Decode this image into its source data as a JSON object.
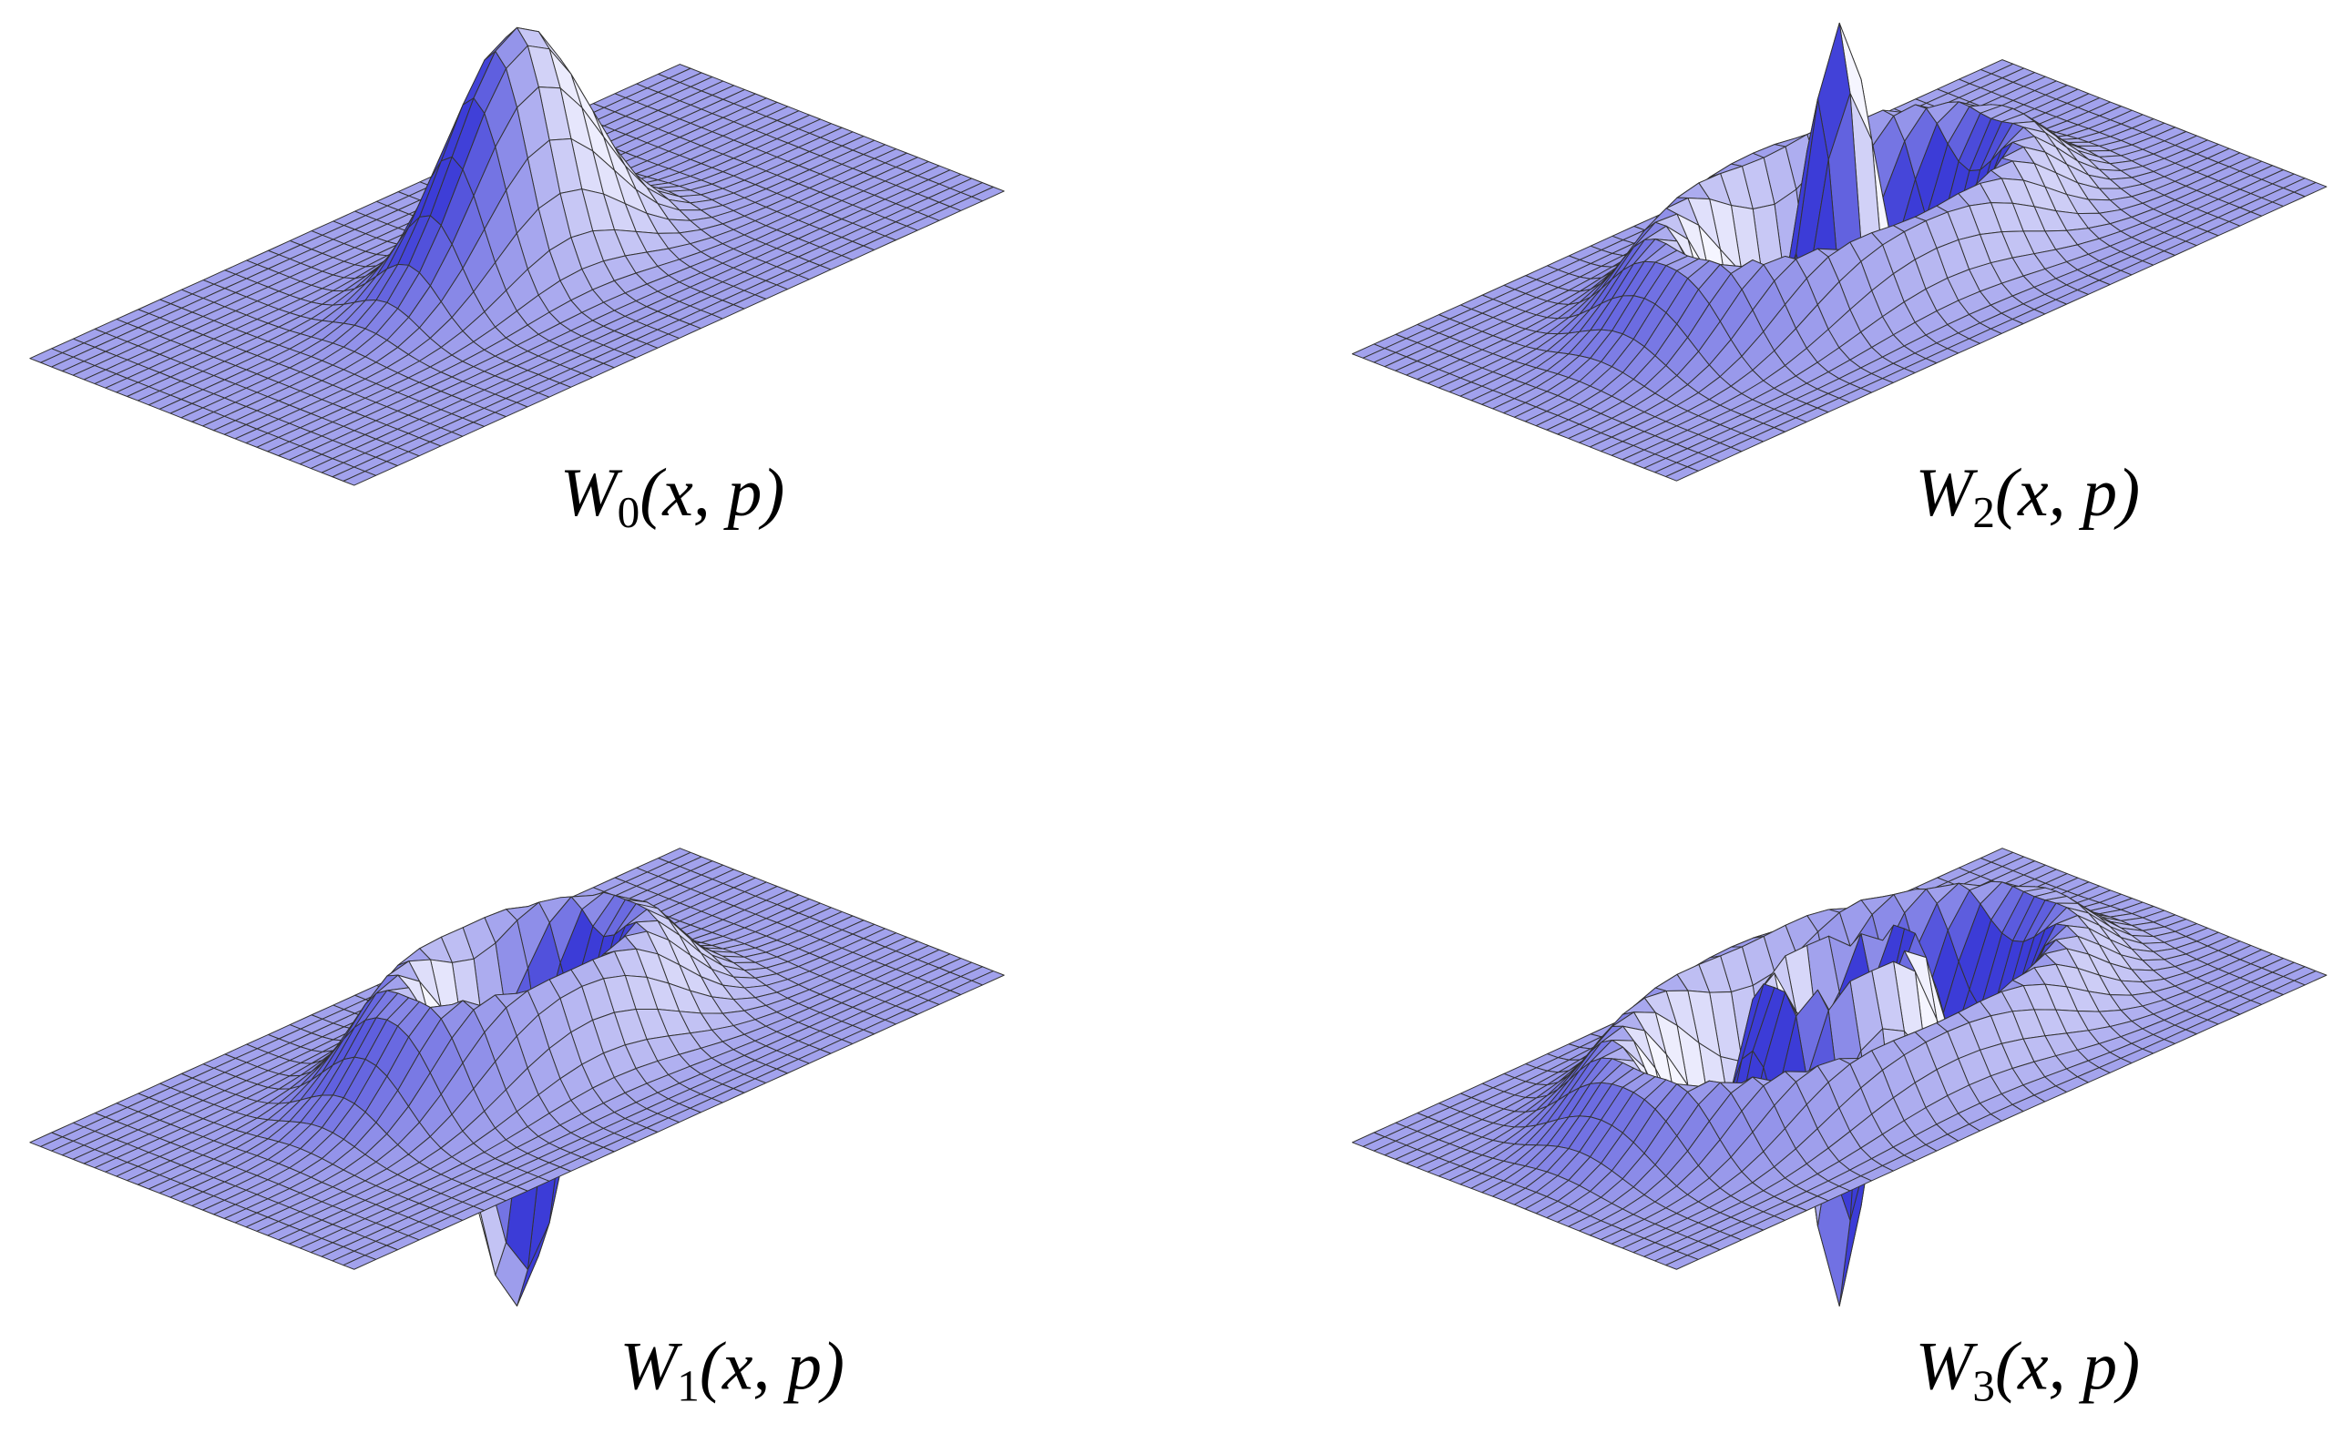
{
  "panels": [
    {
      "symbol": "W",
      "subscript": "0",
      "args": "(x, p)"
    },
    {
      "symbol": "W",
      "subscript": "2",
      "args": "(x, p)"
    },
    {
      "symbol": "W",
      "subscript": "1",
      "args": "(x, p)"
    },
    {
      "symbol": "W",
      "subscript": "3",
      "args": "(x, p)"
    }
  ]
}
